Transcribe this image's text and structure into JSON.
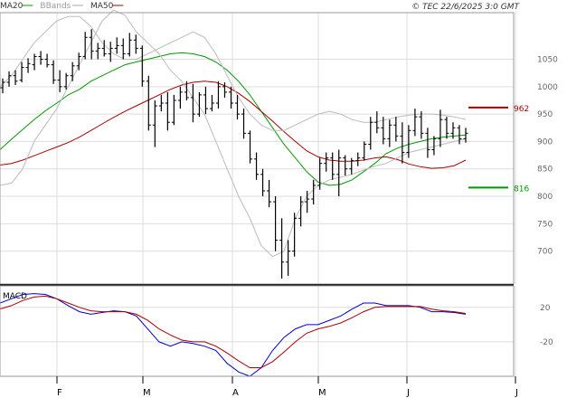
{
  "header": {
    "legend": [
      {
        "name": "MA20",
        "color": "#009900"
      },
      {
        "name": "BBands",
        "color": "#aaaaaa"
      },
      {
        "name": "MA50",
        "color": "#aa0000"
      }
    ],
    "copyright": "© TEC 22/6/2025 3:0 GMT"
  },
  "colors": {
    "price": "#000000",
    "ma20": "#009900",
    "ma50": "#aa0000",
    "bbands": "#bbbbbb",
    "grid": "#dddddd",
    "macd_line": "#0000cc",
    "signal_line": "#aa0000"
  },
  "chart_data": [
    {
      "type": "line",
      "title": "",
      "x_ticks": [
        "F",
        "M",
        "A",
        "M",
        "J",
        "J"
      ],
      "y_ticks": [
        700,
        750,
        800,
        850,
        900,
        950,
        1000,
        1050
      ],
      "ylim": [
        640,
        1135
      ],
      "grid": true,
      "markers": [
        {
          "label": "962",
          "value": 962,
          "color": "#aa0000"
        },
        {
          "label": "816",
          "value": 816,
          "color": "#009900"
        }
      ],
      "series": [
        {
          "name": "MA20",
          "values": [
            885,
            904,
            922,
            940,
            956,
            970,
            985,
            995,
            1010,
            1020,
            1030,
            1040,
            1045,
            1050,
            1055,
            1060,
            1062,
            1060,
            1055,
            1045,
            1030,
            1010,
            985,
            955,
            925,
            895,
            870,
            845,
            826,
            820,
            822,
            830,
            845,
            860,
            878,
            888,
            895,
            900,
            905,
            908,
            910,
            912
          ]
        },
        {
          "name": "MA50",
          "values": [
            857,
            860,
            866,
            874,
            882,
            890,
            898,
            908,
            920,
            932,
            944,
            955,
            965,
            975,
            985,
            995,
            1003,
            1008,
            1010,
            1008,
            1000,
            988,
            973,
            955,
            937,
            918,
            900,
            883,
            872,
            866,
            864,
            864,
            866,
            870,
            872,
            867,
            859,
            854,
            851,
            852,
            856,
            866
          ]
        },
        {
          "name": "BBands",
          "values": [
            820,
            824,
            850,
            900,
            930,
            960,
            1000,
            1040,
            1080,
            1120,
            1140,
            1130,
            1100,
            1080,
            1060,
            1030,
            1010,
            980,
            950,
            900,
            850,
            800,
            760,
            710,
            690,
            700,
            760,
            800,
            820,
            830,
            835,
            840,
            848,
            855,
            860,
            870,
            880,
            885,
            890,
            895,
            900,
            905
          ]
        },
        {
          "name": "BBands",
          "values": [
            1000,
            1020,
            1050,
            1080,
            1100,
            1120,
            1128,
            1128,
            1110,
            1080,
            1060,
            1050,
            1050,
            1060,
            1070,
            1080,
            1090,
            1100,
            1090,
            1060,
            1020,
            980,
            950,
            930,
            920,
            920,
            930,
            940,
            950,
            955,
            950,
            940,
            935,
            935,
            940,
            945,
            948,
            950,
            950,
            948,
            945,
            940
          ]
        }
      ],
      "ohlc": [
        {
          "o": 998,
          "h": 1015,
          "l": 988,
          "c": 1008
        },
        {
          "o": 1008,
          "h": 1028,
          "l": 1000,
          "c": 1020
        },
        {
          "o": 1020,
          "h": 1030,
          "l": 1003,
          "c": 1010
        },
        {
          "o": 1012,
          "h": 1045,
          "l": 1008,
          "c": 1035
        },
        {
          "o": 1035,
          "h": 1052,
          "l": 1025,
          "c": 1042
        },
        {
          "o": 1040,
          "h": 1060,
          "l": 1030,
          "c": 1055
        },
        {
          "o": 1055,
          "h": 1065,
          "l": 1040,
          "c": 1050
        },
        {
          "o": 1050,
          "h": 1060,
          "l": 1035,
          "c": 1040
        },
        {
          "o": 1040,
          "h": 1048,
          "l": 1005,
          "c": 1012
        },
        {
          "o": 1012,
          "h": 1030,
          "l": 990,
          "c": 1000
        },
        {
          "o": 1000,
          "h": 1025,
          "l": 995,
          "c": 1020
        },
        {
          "o": 1020,
          "h": 1045,
          "l": 1010,
          "c": 1038
        },
        {
          "o": 1038,
          "h": 1062,
          "l": 1030,
          "c": 1055
        },
        {
          "o": 1055,
          "h": 1100,
          "l": 1050,
          "c": 1090
        },
        {
          "o": 1090,
          "h": 1105,
          "l": 1050,
          "c": 1065
        },
        {
          "o": 1065,
          "h": 1080,
          "l": 1050,
          "c": 1070
        },
        {
          "o": 1070,
          "h": 1085,
          "l": 1055,
          "c": 1060
        },
        {
          "o": 1060,
          "h": 1082,
          "l": 1045,
          "c": 1070
        },
        {
          "o": 1070,
          "h": 1090,
          "l": 1060,
          "c": 1075
        },
        {
          "o": 1075,
          "h": 1088,
          "l": 1050,
          "c": 1060
        },
        {
          "o": 1060,
          "h": 1098,
          "l": 1055,
          "c": 1085
        },
        {
          "o": 1085,
          "h": 1095,
          "l": 1060,
          "c": 1070
        },
        {
          "o": 1070,
          "h": 1075,
          "l": 1000,
          "c": 1010
        },
        {
          "o": 1010,
          "h": 1020,
          "l": 920,
          "c": 930
        },
        {
          "o": 930,
          "h": 975,
          "l": 890,
          "c": 965
        },
        {
          "o": 965,
          "h": 985,
          "l": 955,
          "c": 970
        },
        {
          "o": 970,
          "h": 990,
          "l": 920,
          "c": 935
        },
        {
          "o": 935,
          "h": 985,
          "l": 930,
          "c": 975
        },
        {
          "o": 975,
          "h": 1000,
          "l": 960,
          "c": 990
        },
        {
          "o": 990,
          "h": 1010,
          "l": 975,
          "c": 980
        },
        {
          "o": 980,
          "h": 1005,
          "l": 935,
          "c": 950
        },
        {
          "o": 950,
          "h": 990,
          "l": 945,
          "c": 985
        },
        {
          "o": 985,
          "h": 1000,
          "l": 950,
          "c": 960
        },
        {
          "o": 960,
          "h": 985,
          "l": 955,
          "c": 970
        },
        {
          "o": 970,
          "h": 1010,
          "l": 960,
          "c": 1000
        },
        {
          "o": 1000,
          "h": 1008,
          "l": 980,
          "c": 990
        },
        {
          "o": 990,
          "h": 1000,
          "l": 960,
          "c": 970
        },
        {
          "o": 970,
          "h": 985,
          "l": 940,
          "c": 950
        },
        {
          "o": 950,
          "h": 960,
          "l": 905,
          "c": 915
        },
        {
          "o": 915,
          "h": 920,
          "l": 860,
          "c": 868
        },
        {
          "o": 868,
          "h": 880,
          "l": 830,
          "c": 840
        },
        {
          "o": 840,
          "h": 850,
          "l": 800,
          "c": 810
        },
        {
          "o": 810,
          "h": 830,
          "l": 780,
          "c": 790
        },
        {
          "o": 790,
          "h": 800,
          "l": 700,
          "c": 720
        },
        {
          "o": 720,
          "h": 760,
          "l": 650,
          "c": 680
        },
        {
          "o": 680,
          "h": 720,
          "l": 655,
          "c": 700
        },
        {
          "o": 700,
          "h": 770,
          "l": 690,
          "c": 760
        },
        {
          "o": 760,
          "h": 800,
          "l": 745,
          "c": 790
        },
        {
          "o": 790,
          "h": 810,
          "l": 770,
          "c": 795
        },
        {
          "o": 795,
          "h": 830,
          "l": 785,
          "c": 820
        },
        {
          "o": 820,
          "h": 870,
          "l": 812,
          "c": 860
        },
        {
          "o": 860,
          "h": 880,
          "l": 845,
          "c": 870
        },
        {
          "o": 870,
          "h": 880,
          "l": 830,
          "c": 840
        },
        {
          "o": 840,
          "h": 885,
          "l": 800,
          "c": 870
        },
        {
          "o": 870,
          "h": 875,
          "l": 838,
          "c": 850
        },
        {
          "o": 850,
          "h": 870,
          "l": 840,
          "c": 865
        },
        {
          "o": 865,
          "h": 880,
          "l": 855,
          "c": 870
        },
        {
          "o": 870,
          "h": 900,
          "l": 865,
          "c": 895
        },
        {
          "o": 895,
          "h": 945,
          "l": 885,
          "c": 935
        },
        {
          "o": 935,
          "h": 955,
          "l": 915,
          "c": 925
        },
        {
          "o": 925,
          "h": 945,
          "l": 895,
          "c": 905
        },
        {
          "o": 905,
          "h": 940,
          "l": 890,
          "c": 930
        },
        {
          "o": 930,
          "h": 945,
          "l": 900,
          "c": 910
        },
        {
          "o": 910,
          "h": 935,
          "l": 860,
          "c": 880
        },
        {
          "o": 880,
          "h": 930,
          "l": 870,
          "c": 920
        },
        {
          "o": 920,
          "h": 960,
          "l": 910,
          "c": 945
        },
        {
          "o": 945,
          "h": 955,
          "l": 905,
          "c": 915
        },
        {
          "o": 915,
          "h": 925,
          "l": 870,
          "c": 885
        },
        {
          "o": 885,
          "h": 910,
          "l": 875,
          "c": 905
        },
        {
          "o": 905,
          "h": 958,
          "l": 890,
          "c": 940
        },
        {
          "o": 940,
          "h": 945,
          "l": 905,
          "c": 915
        },
        {
          "o": 915,
          "h": 935,
          "l": 905,
          "c": 925
        },
        {
          "o": 925,
          "h": 930,
          "l": 895,
          "c": 905
        },
        {
          "o": 905,
          "h": 925,
          "l": 898,
          "c": 915
        }
      ]
    },
    {
      "type": "line",
      "title": "MACD",
      "x_ticks": [
        "F",
        "M",
        "A",
        "M",
        "J",
        "J"
      ],
      "y_ticks": [
        20,
        -20
      ],
      "ylim": [
        -60,
        45
      ],
      "grid": true,
      "series": [
        {
          "name": "MACD",
          "values": [
            25,
            30,
            35,
            36,
            35,
            30,
            22,
            15,
            12,
            14,
            16,
            15,
            10,
            -5,
            -20,
            -25,
            -20,
            -22,
            -25,
            -30,
            -45,
            -55,
            -60,
            -50,
            -30,
            -15,
            -5,
            0,
            0,
            5,
            10,
            18,
            25,
            25,
            22,
            22,
            22,
            20,
            15,
            15,
            14,
            12
          ]
        },
        {
          "name": "Signal",
          "values": [
            18,
            22,
            28,
            32,
            33,
            30,
            25,
            20,
            16,
            15,
            15,
            15,
            12,
            5,
            -5,
            -12,
            -18,
            -20,
            -20,
            -25,
            -33,
            -42,
            -50,
            -50,
            -43,
            -32,
            -20,
            -10,
            -5,
            -2,
            2,
            8,
            15,
            20,
            21,
            21,
            21,
            21,
            18,
            16,
            15,
            13
          ]
        }
      ]
    }
  ]
}
